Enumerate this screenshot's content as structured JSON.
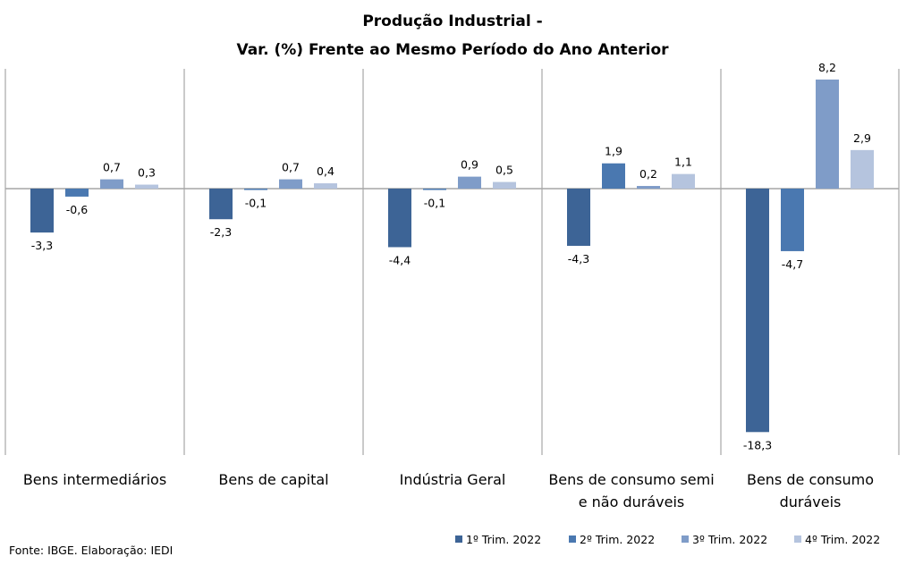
{
  "chart_data": {
    "type": "bar",
    "title": [
      "Produção Industrial -",
      "Var. (%)  Frente ao Mesmo Período do Ano Anterior"
    ],
    "xlabel": "",
    "ylabel": "",
    "categories": [
      [
        "Bens intermediários"
      ],
      [
        "Bens de capital"
      ],
      [
        "Indústria Geral"
      ],
      [
        "Bens de consumo semi",
        "e não duráveis"
      ],
      [
        "Bens de consumo",
        "duráveis"
      ]
    ],
    "series": [
      {
        "name": "1º Trim. 2022",
        "color": "#3D6496",
        "values": [
          -3.3,
          -2.3,
          -4.4,
          -4.3,
          -18.3
        ],
        "labels": [
          "-3,3",
          "-2,3",
          "-4,4",
          "-4,3",
          "-18,3"
        ]
      },
      {
        "name": "2º Trim. 2022",
        "color": "#4A78B0",
        "values": [
          -0.6,
          -0.1,
          -0.1,
          1.9,
          -4.7
        ],
        "labels": [
          "-0,6",
          "-0,1",
          "-0,1",
          "1,9",
          "-4,7"
        ]
      },
      {
        "name": "3º Trim. 2022",
        "color": "#7F9CC8",
        "values": [
          0.7,
          0.7,
          0.9,
          0.2,
          8.2
        ],
        "labels": [
          "0,7",
          "0,7",
          "0,9",
          "0,2",
          "8,2"
        ]
      },
      {
        "name": "4º Trim. 2022",
        "color": "#B5C4DE",
        "values": [
          0.3,
          0.4,
          0.5,
          1.1,
          2.9
        ],
        "labels": [
          "0,3",
          "0,4",
          "0,5",
          "1,1",
          "2,9"
        ]
      }
    ],
    "ylim": [
      -19.3,
      9.1
    ],
    "grid": false,
    "legend_position": "bottom-right",
    "source": "Fonte: IBGE. Elaboração: IEDI"
  }
}
